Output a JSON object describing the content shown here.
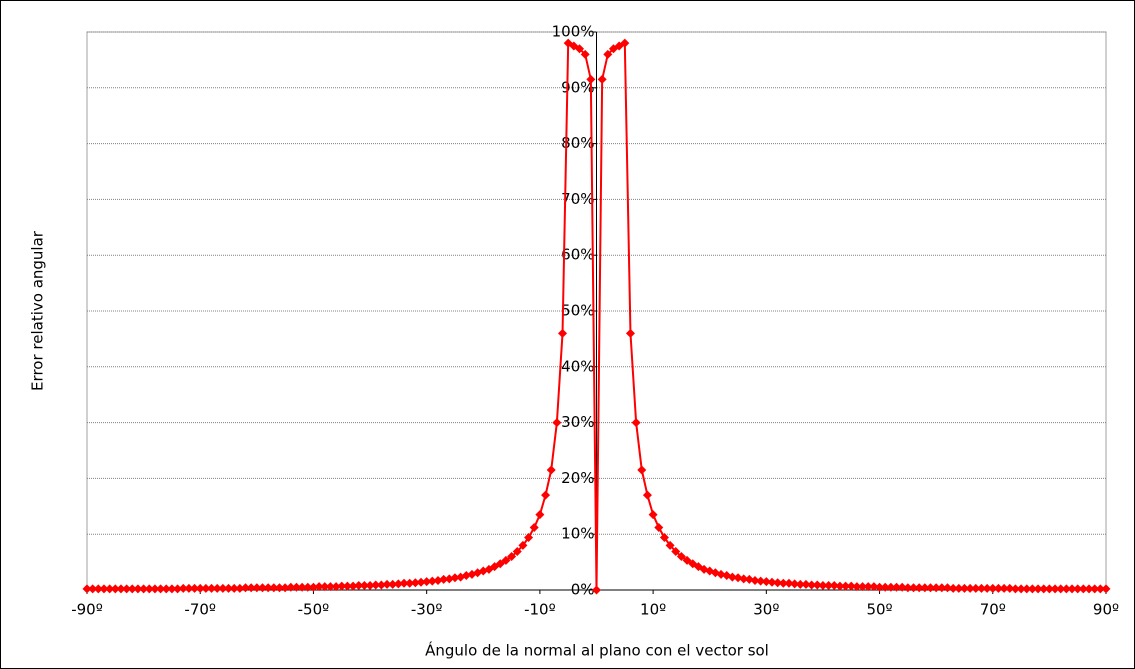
{
  "chart_data": {
    "type": "line",
    "x_label": "Ángulo de la normal al plano con el vector sol",
    "y_label": "Error relativo angular",
    "x": [
      -90,
      -89,
      -88,
      -87,
      -86,
      -85,
      -84,
      -83,
      -82,
      -81,
      -80,
      -79,
      -78,
      -77,
      -76,
      -75,
      -74,
      -73,
      -72,
      -71,
      -70,
      -69,
      -68,
      -67,
      -66,
      -65,
      -64,
      -63,
      -62,
      -61,
      -60,
      -59,
      -58,
      -57,
      -56,
      -55,
      -54,
      -53,
      -52,
      -51,
      -50,
      -49,
      -48,
      -47,
      -46,
      -45,
      -44,
      -43,
      -42,
      -41,
      -40,
      -39,
      -38,
      -37,
      -36,
      -35,
      -34,
      -33,
      -32,
      -31,
      -30,
      -29,
      -28,
      -27,
      -26,
      -25,
      -24,
      -23,
      -22,
      -21,
      -20,
      -19,
      -18,
      -17,
      -16,
      -15,
      -14,
      -13,
      -12,
      -11,
      -10,
      -9,
      -8,
      -7,
      -6,
      -5,
      -4,
      -3,
      -2,
      -1,
      0,
      1,
      2,
      3,
      4,
      5,
      6,
      7,
      8,
      9,
      10,
      11,
      12,
      13,
      14,
      15,
      16,
      17,
      18,
      19,
      20,
      21,
      22,
      23,
      24,
      25,
      26,
      27,
      28,
      29,
      30,
      31,
      32,
      33,
      34,
      35,
      36,
      37,
      38,
      39,
      40,
      41,
      42,
      43,
      44,
      45,
      46,
      47,
      48,
      49,
      50,
      51,
      52,
      53,
      54,
      55,
      56,
      57,
      58,
      59,
      60,
      61,
      62,
      63,
      64,
      65,
      66,
      67,
      68,
      69,
      70,
      71,
      72,
      73,
      74,
      75,
      76,
      77,
      78,
      79,
      80,
      81,
      82,
      83,
      84,
      85,
      86,
      87,
      88,
      89,
      90
    ],
    "series": [
      {
        "color": "#ff0000",
        "values": [
          0.2,
          0.2,
          0.2,
          0.2,
          0.2,
          0.2,
          0.2,
          0.2,
          0.2,
          0.2,
          0.2,
          0.2,
          0.2,
          0.2,
          0.2,
          0.2,
          0.2,
          0.3,
          0.3,
          0.3,
          0.3,
          0.3,
          0.3,
          0.3,
          0.3,
          0.3,
          0.3,
          0.3,
          0.4,
          0.4,
          0.4,
          0.4,
          0.4,
          0.4,
          0.4,
          0.4,
          0.5,
          0.5,
          0.5,
          0.5,
          0.5,
          0.6,
          0.6,
          0.6,
          0.6,
          0.7,
          0.7,
          0.7,
          0.8,
          0.8,
          0.8,
          0.9,
          0.9,
          1,
          1,
          1.1,
          1.2,
          1.2,
          1.3,
          1.4,
          1.5,
          1.6,
          1.7,
          1.9,
          2,
          2.2,
          2.3,
          2.6,
          2.8,
          3.1,
          3.4,
          3.7,
          4.2,
          4.7,
          5.3,
          6,
          6.9,
          8,
          9.4,
          11.2,
          13.5,
          17,
          21.5,
          30,
          46,
          98,
          97.5,
          97,
          96,
          91.5,
          0,
          91.5,
          96,
          97,
          97.5,
          98,
          46,
          30,
          21.5,
          17,
          13.5,
          11.2,
          9.4,
          8,
          6.9,
          6,
          5.3,
          4.7,
          4.2,
          3.7,
          3.4,
          3.1,
          2.8,
          2.6,
          2.3,
          2.2,
          2,
          1.9,
          1.7,
          1.6,
          1.5,
          1.4,
          1.3,
          1.2,
          1.2,
          1.1,
          1,
          1,
          0.9,
          0.9,
          0.8,
          0.8,
          0.8,
          0.7,
          0.7,
          0.7,
          0.6,
          0.6,
          0.6,
          0.6,
          0.5,
          0.5,
          0.5,
          0.5,
          0.5,
          0.4,
          0.4,
          0.4,
          0.4,
          0.4,
          0.4,
          0.4,
          0.4,
          0.3,
          0.3,
          0.3,
          0.3,
          0.3,
          0.3,
          0.3,
          0.3,
          0.3,
          0.3,
          0.3,
          0.2,
          0.2,
          0.2,
          0.2,
          0.2,
          0.2,
          0.2,
          0.2,
          0.2,
          0.2,
          0.2,
          0.2,
          0.2,
          0.2,
          0.2,
          0.2,
          0.2
        ]
      }
    ],
    "xlim": [
      -90,
      90
    ],
    "xticks": [
      {
        "value": -90,
        "label": "-90º"
      },
      {
        "value": -70,
        "label": "-70º"
      },
      {
        "value": -50,
        "label": "-50º"
      },
      {
        "value": -30,
        "label": "-30º"
      },
      {
        "value": -10,
        "label": "-10º"
      },
      {
        "value": 10,
        "label": "10º"
      },
      {
        "value": 30,
        "label": "30º"
      },
      {
        "value": 50,
        "label": "50º"
      },
      {
        "value": 70,
        "label": "70º"
      },
      {
        "value": 90,
        "label": "90º"
      }
    ],
    "ylim": [
      0,
      100
    ],
    "yticks": [
      {
        "value": 0,
        "label": "0%"
      },
      {
        "value": 10,
        "label": "10%"
      },
      {
        "value": 20,
        "label": "20%"
      },
      {
        "value": 30,
        "label": "30%"
      },
      {
        "value": 40,
        "label": "40%"
      },
      {
        "value": 50,
        "label": "50%"
      },
      {
        "value": 60,
        "label": "60%"
      },
      {
        "value": 70,
        "label": "70%"
      },
      {
        "value": 80,
        "label": "80%"
      },
      {
        "value": 90,
        "label": "90%"
      },
      {
        "value": 100,
        "label": "100%"
      }
    ],
    "grid": true
  }
}
